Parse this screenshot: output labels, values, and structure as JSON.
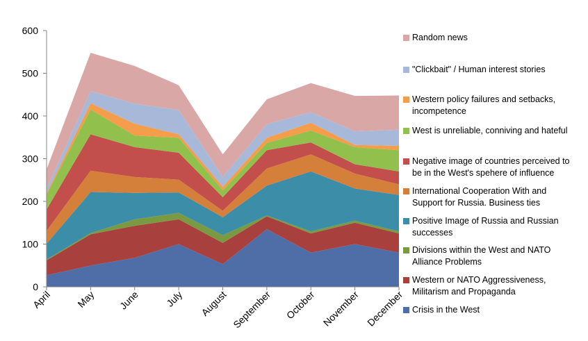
{
  "chart_data": {
    "type": "area",
    "stacked": true,
    "categories": [
      "April",
      "May",
      "June",
      "July",
      "August",
      "September",
      "October",
      "November",
      "December"
    ],
    "ylim": [
      0,
      600
    ],
    "yticks": [
      0,
      100,
      200,
      300,
      400,
      500,
      600
    ],
    "grid": false,
    "legend_position": "right",
    "series": [
      {
        "name": "Crisis in the West",
        "color": "#4F6EA8",
        "values": [
          27,
          50,
          68,
          100,
          53,
          135,
          80,
          100,
          80
        ]
      },
      {
        "name": "Western or NATO Aggressiveness, Militarism and Propaganda",
        "color": "#A8403E",
        "values": [
          35,
          73,
          75,
          58,
          50,
          30,
          45,
          50,
          45
        ]
      },
      {
        "name": "Divisions within the West and NATO Alliance Problems",
        "color": "#7A9A42",
        "values": [
          2,
          3,
          15,
          15,
          18,
          2,
          5,
          5,
          5
        ]
      },
      {
        "name": "Positive Image of Russia and Russian successes",
        "color": "#3C8DA8",
        "values": [
          37,
          96,
          62,
          48,
          42,
          70,
          140,
          75,
          85
        ]
      },
      {
        "name": "International Cooperation With and Support for Russia. Business ties",
        "color": "#D47F3A",
        "values": [
          30,
          50,
          37,
          30,
          15,
          40,
          40,
          35,
          25
        ]
      },
      {
        "name": "Negative image of countries perceived to be in the West's spehere of influence",
        "color": "#C24F4C",
        "values": [
          50,
          85,
          70,
          63,
          32,
          43,
          28,
          22,
          30
        ]
      },
      {
        "name": "West is unreliable, conniving and hateful",
        "color": "#92C04D",
        "values": [
          35,
          58,
          27,
          35,
          16,
          17,
          28,
          40,
          50
        ]
      },
      {
        "name": "Western policy failures and setbacks, incompetence",
        "color": "#F49D4A",
        "values": [
          3,
          15,
          28,
          8,
          8,
          12,
          18,
          5,
          10
        ]
      },
      {
        "name": "\"Clickbait\" / Human interest stories",
        "color": "#A8B8D8",
        "values": [
          11,
          28,
          47,
          57,
          23,
          32,
          25,
          32,
          38
        ]
      },
      {
        "name": "Random news",
        "color": "#D9A7A6",
        "values": [
          45,
          90,
          88,
          58,
          53,
          58,
          68,
          83,
          80
        ]
      }
    ]
  }
}
